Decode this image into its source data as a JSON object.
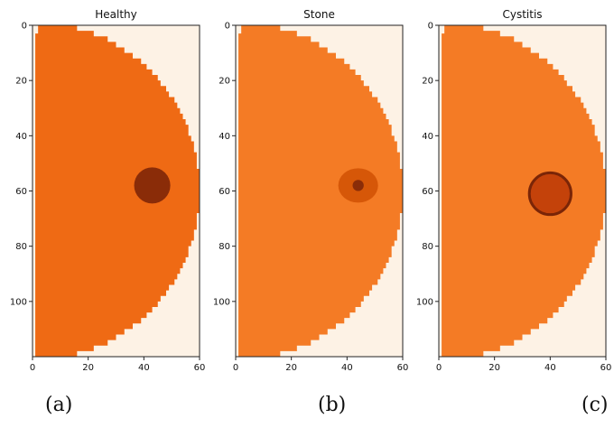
{
  "figure": {
    "captions": [
      "(a)",
      "(b)",
      "(c)"
    ]
  },
  "chart_data": [
    {
      "type": "heatmap",
      "title": "Healthy",
      "xlim": [
        0,
        60
      ],
      "ylim": [
        120,
        0
      ],
      "x_ticks": [
        0,
        20,
        40,
        60
      ],
      "y_ticks": [
        0,
        20,
        40,
        60,
        80,
        100
      ],
      "grid": false,
      "background_color": "#fdf2e5",
      "body_color": "#ef6a14",
      "lesion": {
        "kind": "filled",
        "center_x": 43,
        "center_y": 58,
        "radius": 6.5,
        "color": "#8a2c08"
      }
    },
    {
      "type": "heatmap",
      "title": "Stone",
      "xlim": [
        0,
        60
      ],
      "ylim": [
        120,
        0
      ],
      "x_ticks": [
        0,
        20,
        40,
        60
      ],
      "y_ticks": [
        0,
        20,
        40,
        60,
        80,
        100
      ],
      "grid": false,
      "background_color": "#fdf2e5",
      "body_color": "#f47b25",
      "lesion": {
        "kind": "stone",
        "center_x": 44,
        "center_y": 58,
        "radius": 6.5,
        "color": "#d65708",
        "core_color": "#8a2c08"
      }
    },
    {
      "type": "heatmap",
      "title": "Cystitis",
      "xlim": [
        0,
        60
      ],
      "ylim": [
        120,
        0
      ],
      "x_ticks": [
        0,
        20,
        40,
        60
      ],
      "y_ticks": [
        0,
        20,
        40,
        60,
        80,
        100
      ],
      "grid": false,
      "background_color": "#fdf2e5",
      "body_color": "#f47b25",
      "lesion": {
        "kind": "ring",
        "center_x": 40,
        "center_y": 61,
        "radius": 7.5,
        "color": "#c4420a",
        "ring_color": "#7a2507"
      }
    }
  ]
}
